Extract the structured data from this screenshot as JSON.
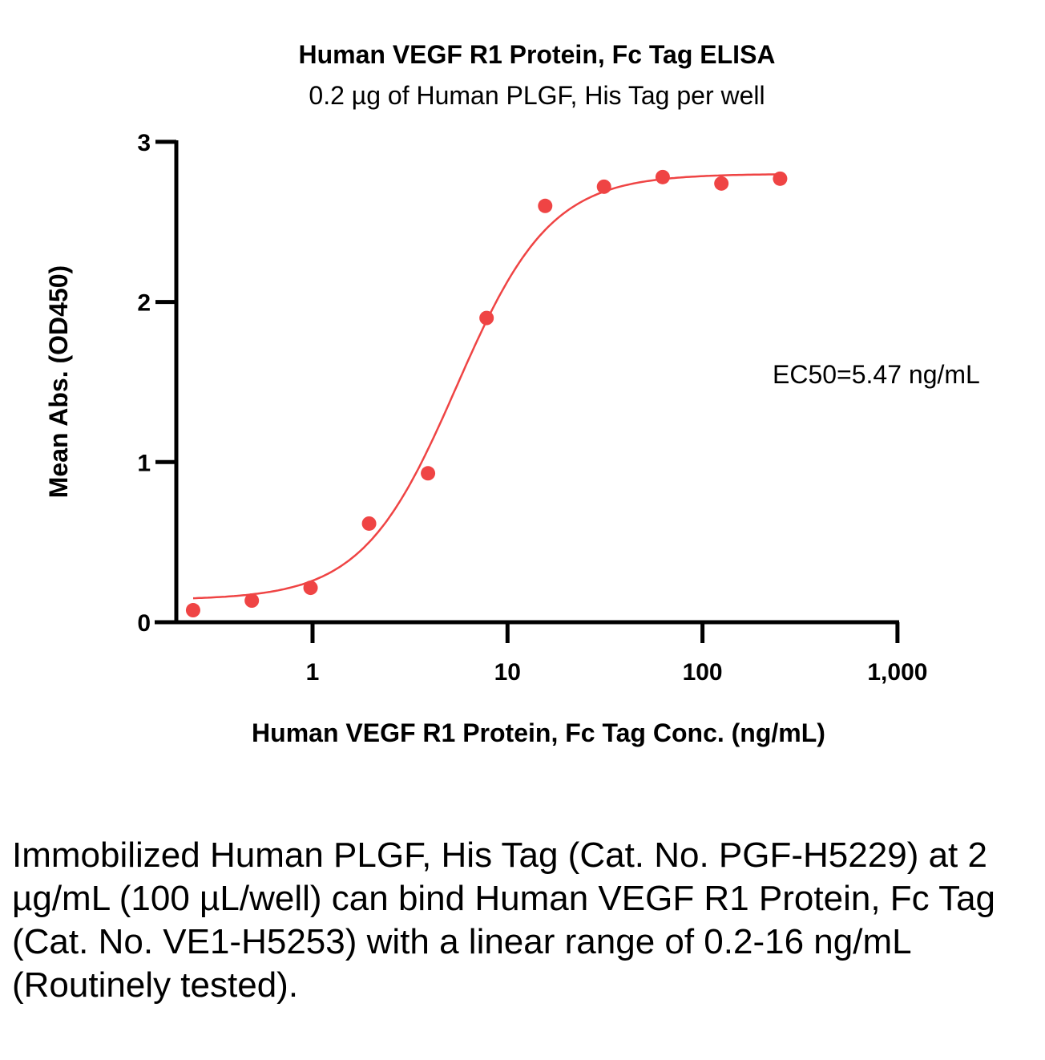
{
  "chart_data": {
    "type": "scatter",
    "title": "Human VEGF R1 Protein, Fc Tag ELISA",
    "subtitle": "0.2 µg of Human PLGF, His Tag per well",
    "xlabel": "Human VEGF R1 Protein, Fc Tag Conc. (ng/mL)",
    "ylabel": "Mean Abs. (OD450)",
    "xscale": "log",
    "xlim": [
      0.2,
      1000
    ],
    "ylim": [
      0,
      3
    ],
    "xticks": [
      1,
      10,
      100,
      1000
    ],
    "xtick_labels": [
      "1",
      "10",
      "100",
      "1,000"
    ],
    "yticks": [
      0,
      1,
      2,
      3
    ],
    "ytick_labels": [
      "0",
      "1",
      "2",
      "3"
    ],
    "grid": false,
    "color": "#ef4444",
    "annotation": "EC50=5.47 ng/mL",
    "series": [
      {
        "name": "Mean Abs.",
        "x": [
          0.244,
          0.488,
          0.977,
          1.95,
          3.91,
          7.81,
          15.6,
          31.25,
          62.5,
          125,
          250
        ],
        "y": [
          0.075,
          0.135,
          0.215,
          0.616,
          0.93,
          1.9,
          2.6,
          2.72,
          2.78,
          2.74,
          2.77
        ]
      }
    ],
    "fit": {
      "model": "4PL",
      "bottom": 0.14,
      "top": 2.8,
      "ec50": 5.47,
      "hill": 1.8
    }
  },
  "caption": "Immobilized Human PLGF, His Tag (Cat. No. PGF-H5229) at 2 µg/mL (100 µL/well) can bind Human VEGF R1 Protein, Fc Tag (Cat. No. VE1-H5253) with a linear range of 0.2-16 ng/mL (Routinely tested)."
}
